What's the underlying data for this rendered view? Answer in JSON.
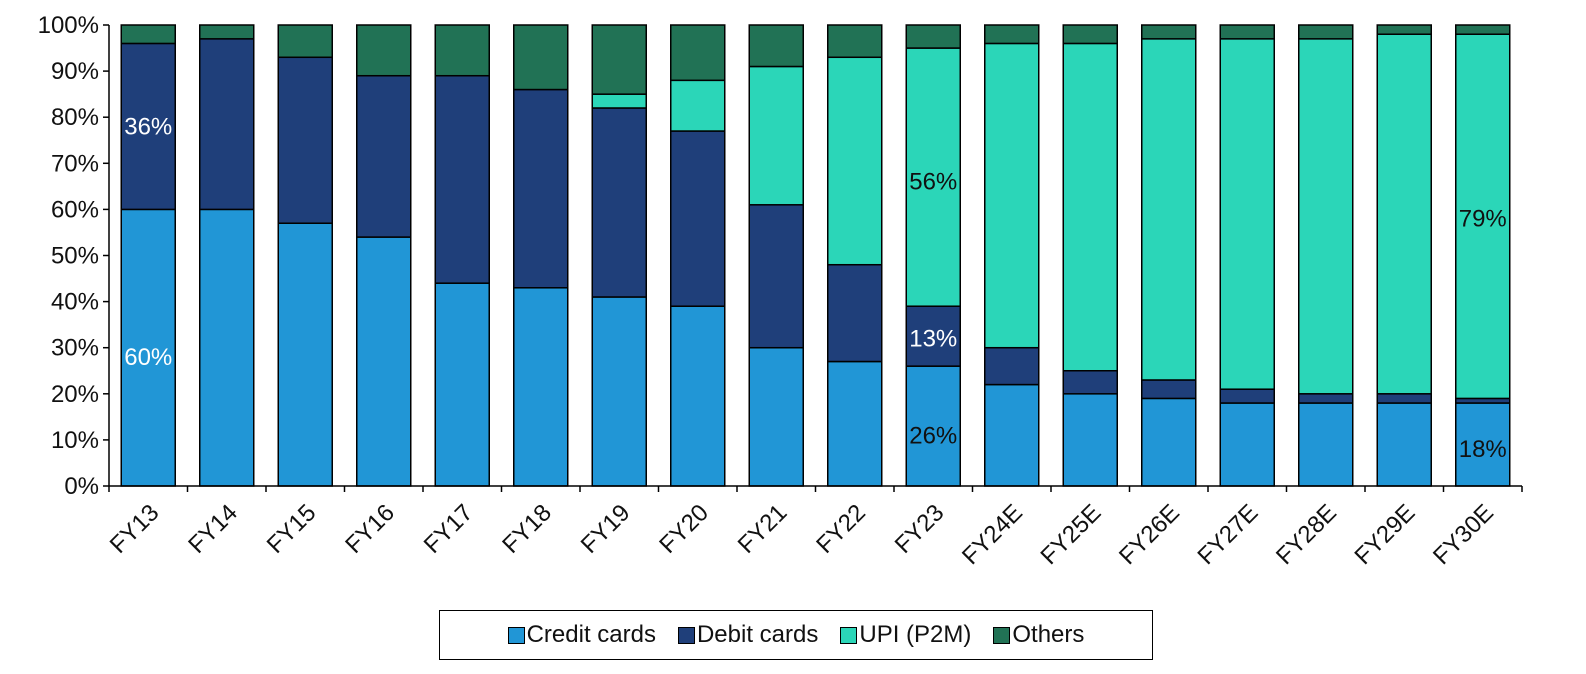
{
  "chart_data": {
    "type": "bar",
    "stacked": true,
    "categories": [
      "FY13",
      "FY14",
      "FY15",
      "FY16",
      "FY17",
      "FY18",
      "FY19",
      "FY20",
      "FY21",
      "FY22",
      "FY23",
      "FY24E",
      "FY25E",
      "FY26E",
      "FY27E",
      "FY28E",
      "FY29E",
      "FY30E"
    ],
    "series": [
      {
        "name": "Credit cards",
        "color": "#2196d6",
        "values": [
          60,
          60,
          57,
          54,
          44,
          43,
          41,
          39,
          30,
          27,
          26,
          22,
          20,
          19,
          18,
          18,
          18,
          18
        ]
      },
      {
        "name": "Debit cards",
        "color": "#1f3f7a",
        "values": [
          36,
          37,
          36,
          35,
          45,
          43,
          41,
          38,
          31,
          21,
          13,
          8,
          5,
          4,
          3,
          2,
          2,
          1
        ]
      },
      {
        "name": "UPI (P2M)",
        "color": "#2bd6b8",
        "values": [
          0,
          0,
          0,
          0,
          0,
          0,
          3,
          11,
          30,
          45,
          56,
          66,
          71,
          74,
          76,
          77,
          78,
          79
        ]
      },
      {
        "name": "Others",
        "color": "#217255",
        "values": [
          4,
          3,
          7,
          11,
          11,
          14,
          15,
          12,
          9,
          7,
          5,
          4,
          4,
          3,
          3,
          3,
          2,
          2
        ]
      }
    ],
    "ylim": [
      0,
      100
    ],
    "ytick_labels": [
      "0%",
      "10%",
      "20%",
      "30%",
      "40%",
      "50%",
      "60%",
      "70%",
      "80%",
      "90%",
      "100%"
    ],
    "grid": false,
    "legend_position": "bottom",
    "data_labels": [
      {
        "category": "FY13",
        "y": 28,
        "text": "60%",
        "color": "#ffffff"
      },
      {
        "category": "FY13",
        "y": 78,
        "text": "36%",
        "color": "#ffffff"
      },
      {
        "category": "FY23",
        "y": 11,
        "text": "26%",
        "color": "#111111"
      },
      {
        "category": "FY23",
        "y": 32,
        "text": "13%",
        "color": "#ffffff"
      },
      {
        "category": "FY23",
        "y": 66,
        "text": "56%",
        "color": "#111111"
      },
      {
        "category": "FY30E",
        "y": 8,
        "text": "18%",
        "color": "#111111"
      },
      {
        "category": "FY30E",
        "y": 58,
        "text": "79%",
        "color": "#111111"
      }
    ]
  }
}
